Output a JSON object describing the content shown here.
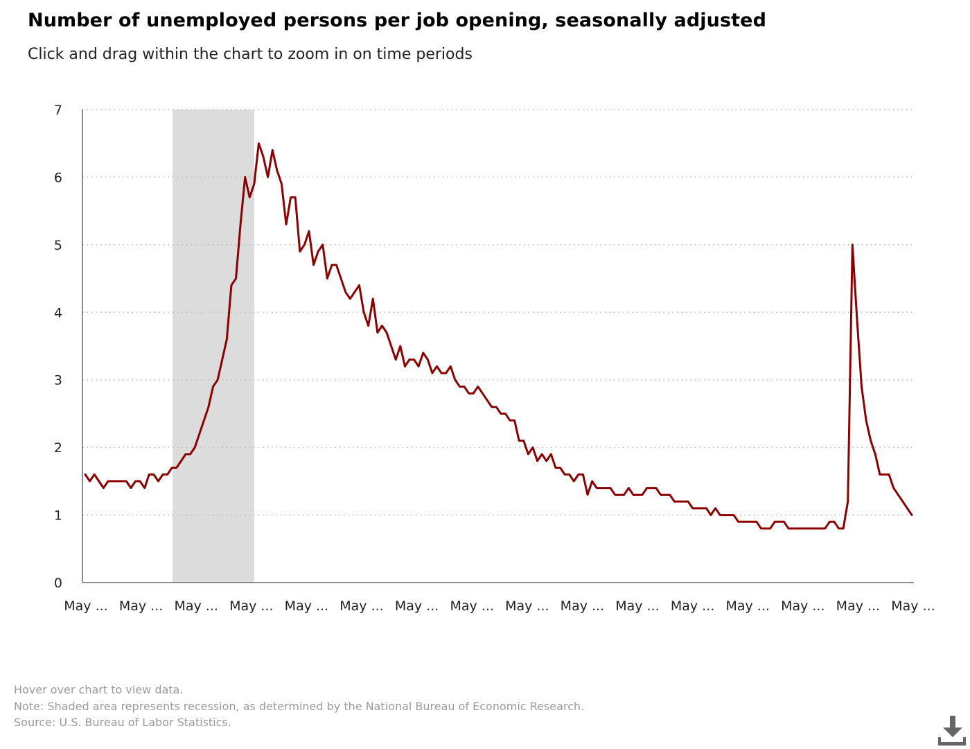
{
  "title": "Number of unemployed persons per job opening, seasonally adjusted",
  "subtitle": "Click and drag within the chart to zoom in on time periods",
  "footer": {
    "hover": "Hover over chart to view data.",
    "note": "Note: Shaded area represents recession, as determined by the National Bureau of Economic Research.",
    "source": "Source: U.S. Bureau of Labor Statistics."
  },
  "colors": {
    "line": "#8b0000",
    "recession": "#dcdcdc",
    "grid": "#b3b3b3",
    "axis": "#666666"
  },
  "icons": {
    "download": "download-icon"
  },
  "chart_data": {
    "type": "line",
    "title": "Number of unemployed persons per job opening, seasonally adjusted",
    "xlabel": "",
    "ylabel": "",
    "ylim": [
      0,
      7
    ],
    "yticks": [
      0,
      1,
      2,
      3,
      4,
      5,
      6,
      7
    ],
    "xticks": [
      "May ...",
      "May ...",
      "May ...",
      "May ...",
      "May ...",
      "May ...",
      "May ...",
      "May ...",
      "May ...",
      "May ...",
      "May ...",
      "May ...",
      "May ...",
      "May ...",
      "May ...",
      "May ..."
    ],
    "grid": "horizontal dotted",
    "recession": {
      "start_index": 19,
      "end_index": 37
    },
    "series": [
      {
        "values": [
          1.6,
          1.5,
          1.6,
          1.5,
          1.4,
          1.5,
          1.5,
          1.5,
          1.5,
          1.5,
          1.4,
          1.5,
          1.5,
          1.4,
          1.6,
          1.6,
          1.5,
          1.6,
          1.6,
          1.7,
          1.7,
          1.8,
          1.9,
          1.9,
          2.0,
          2.2,
          2.4,
          2.6,
          2.9,
          3.0,
          3.3,
          3.6,
          4.4,
          4.5,
          5.3,
          6.0,
          5.7,
          5.9,
          6.5,
          6.3,
          6.0,
          6.4,
          6.1,
          5.9,
          5.3,
          5.7,
          5.7,
          4.9,
          5.0,
          5.2,
          4.7,
          4.9,
          5.0,
          4.5,
          4.7,
          4.7,
          4.5,
          4.3,
          4.2,
          4.3,
          4.4,
          4.0,
          3.8,
          4.2,
          3.7,
          3.8,
          3.7,
          3.5,
          3.3,
          3.5,
          3.2,
          3.3,
          3.3,
          3.2,
          3.4,
          3.3,
          3.1,
          3.2,
          3.1,
          3.1,
          3.2,
          3.0,
          2.9,
          2.9,
          2.8,
          2.8,
          2.9,
          2.8,
          2.7,
          2.6,
          2.6,
          2.5,
          2.5,
          2.4,
          2.4,
          2.1,
          2.1,
          1.9,
          2.0,
          1.8,
          1.9,
          1.8,
          1.9,
          1.7,
          1.7,
          1.6,
          1.6,
          1.5,
          1.6,
          1.6,
          1.3,
          1.5,
          1.4,
          1.4,
          1.4,
          1.4,
          1.3,
          1.3,
          1.3,
          1.4,
          1.3,
          1.3,
          1.3,
          1.4,
          1.4,
          1.4,
          1.3,
          1.3,
          1.3,
          1.2,
          1.2,
          1.2,
          1.2,
          1.1,
          1.1,
          1.1,
          1.1,
          1.0,
          1.1,
          1.0,
          1.0,
          1.0,
          1.0,
          0.9,
          0.9,
          0.9,
          0.9,
          0.9,
          0.8,
          0.8,
          0.8,
          0.9,
          0.9,
          0.9,
          0.8,
          0.8,
          0.8,
          0.8,
          0.8,
          0.8,
          0.8,
          0.8,
          0.8,
          0.9,
          0.9,
          0.8,
          0.8,
          1.2,
          5.0,
          3.9,
          2.9,
          2.4,
          2.1,
          1.9,
          1.6,
          1.6,
          1.6,
          1.4,
          1.3,
          1.2,
          1.1,
          1.0
        ]
      }
    ]
  }
}
